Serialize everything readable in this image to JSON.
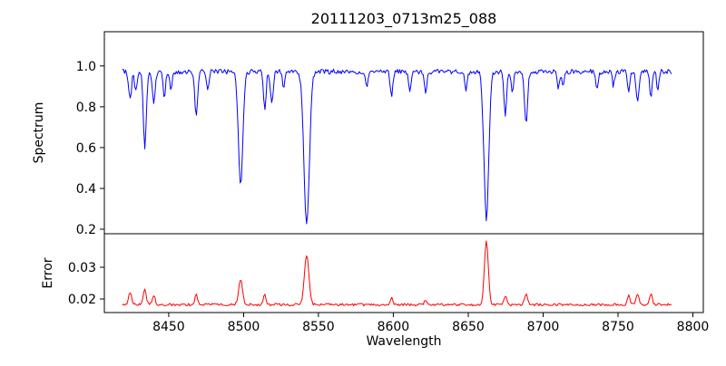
{
  "chart_data": {
    "type": "line",
    "title": "20111203_0713m25_088",
    "xlabel": "Wavelength",
    "xlim": [
      8407,
      8807
    ],
    "xticks": [
      8450,
      8500,
      8550,
      8600,
      8650,
      8700,
      8750,
      8800
    ],
    "xtick_labels": [
      "8450",
      "8500",
      "8550",
      "8600",
      "8650",
      "8700",
      "8750",
      "8800"
    ],
    "x_start": 8419,
    "x_end": 8786,
    "x_step": 0.75,
    "noise_seed": 20111203,
    "legend": "none",
    "grid": false,
    "panels": [
      {
        "name": "spectrum",
        "ylabel": "Spectrum",
        "color": "#0000ff",
        "ylim": [
          0.178,
          1.168
        ],
        "yticks": [
          0.2,
          0.4,
          0.6,
          0.8,
          1.0
        ],
        "ytick_labels": [
          "0.2",
          "0.4",
          "0.6",
          "0.8",
          "1.0"
        ],
        "continuum": 0.972,
        "noise": 0.012,
        "absorption_lines": [
          {
            "center": 8424.2,
            "depth": 0.14,
            "width": 0.9
          },
          {
            "center": 8428.0,
            "depth": 0.1,
            "width": 0.8
          },
          {
            "center": 8434.0,
            "depth": 0.37,
            "width": 1.0
          },
          {
            "center": 8440.0,
            "depth": 0.16,
            "width": 0.9
          },
          {
            "center": 8447.0,
            "depth": 0.13,
            "width": 0.8
          },
          {
            "center": 8451.5,
            "depth": 0.09,
            "width": 0.8
          },
          {
            "center": 8468.4,
            "depth": 0.21,
            "width": 1.0
          },
          {
            "center": 8476.0,
            "depth": 0.08,
            "width": 0.8
          },
          {
            "center": 8498.0,
            "depth": 0.55,
            "width": 1.5
          },
          {
            "center": 8514.1,
            "depth": 0.18,
            "width": 0.9
          },
          {
            "center": 8518.8,
            "depth": 0.15,
            "width": 0.9
          },
          {
            "center": 8526.7,
            "depth": 0.08,
            "width": 0.8
          },
          {
            "center": 8542.1,
            "depth": 0.75,
            "width": 1.8
          },
          {
            "center": 8582.3,
            "depth": 0.08,
            "width": 0.8
          },
          {
            "center": 8598.8,
            "depth": 0.12,
            "width": 0.9
          },
          {
            "center": 8611.0,
            "depth": 0.1,
            "width": 0.8
          },
          {
            "center": 8621.5,
            "depth": 0.11,
            "width": 0.8
          },
          {
            "center": 8648.5,
            "depth": 0.09,
            "width": 0.9
          },
          {
            "center": 8662.1,
            "depth": 0.72,
            "width": 1.6
          },
          {
            "center": 8674.7,
            "depth": 0.21,
            "width": 0.9
          },
          {
            "center": 8679.5,
            "depth": 0.1,
            "width": 0.8
          },
          {
            "center": 8688.6,
            "depth": 0.26,
            "width": 1.0
          },
          {
            "center": 8710.2,
            "depth": 0.08,
            "width": 0.8
          },
          {
            "center": 8713.2,
            "depth": 0.07,
            "width": 0.7
          },
          {
            "center": 8736.0,
            "depth": 0.09,
            "width": 0.9
          },
          {
            "center": 8747.0,
            "depth": 0.07,
            "width": 0.7
          },
          {
            "center": 8757.1,
            "depth": 0.1,
            "width": 0.8
          },
          {
            "center": 8763.1,
            "depth": 0.15,
            "width": 0.9
          },
          {
            "center": 8772.0,
            "depth": 0.12,
            "width": 0.8
          },
          {
            "center": 8776.5,
            "depth": 0.09,
            "width": 0.7
          }
        ]
      },
      {
        "name": "error",
        "ylabel": "Error",
        "color": "#ff0000",
        "ylim": [
          0.0157,
          0.0406
        ],
        "yticks": [
          0.02,
          0.03
        ],
        "ytick_labels": [
          "0.02",
          "0.03"
        ],
        "baseline": 0.0182,
        "noise": 0.0004,
        "peaks": [
          {
            "center": 8424.2,
            "height": 0.004,
            "width": 1.0
          },
          {
            "center": 8434.0,
            "height": 0.005,
            "width": 1.0
          },
          {
            "center": 8440.0,
            "height": 0.003,
            "width": 0.9
          },
          {
            "center": 8468.4,
            "height": 0.003,
            "width": 1.0
          },
          {
            "center": 8498.0,
            "height": 0.008,
            "width": 1.3
          },
          {
            "center": 8514.1,
            "height": 0.003,
            "width": 0.9
          },
          {
            "center": 8542.1,
            "height": 0.0155,
            "width": 1.5
          },
          {
            "center": 8598.8,
            "height": 0.002,
            "width": 0.9
          },
          {
            "center": 8621.5,
            "height": 0.0015,
            "width": 0.8
          },
          {
            "center": 8662.1,
            "height": 0.0205,
            "width": 1.3
          },
          {
            "center": 8674.7,
            "height": 0.003,
            "width": 0.9
          },
          {
            "center": 8688.6,
            "height": 0.0035,
            "width": 1.0
          },
          {
            "center": 8757.1,
            "height": 0.003,
            "width": 0.9
          },
          {
            "center": 8763.1,
            "height": 0.0035,
            "width": 0.9
          },
          {
            "center": 8772.0,
            "height": 0.0035,
            "width": 0.9
          }
        ]
      }
    ]
  }
}
